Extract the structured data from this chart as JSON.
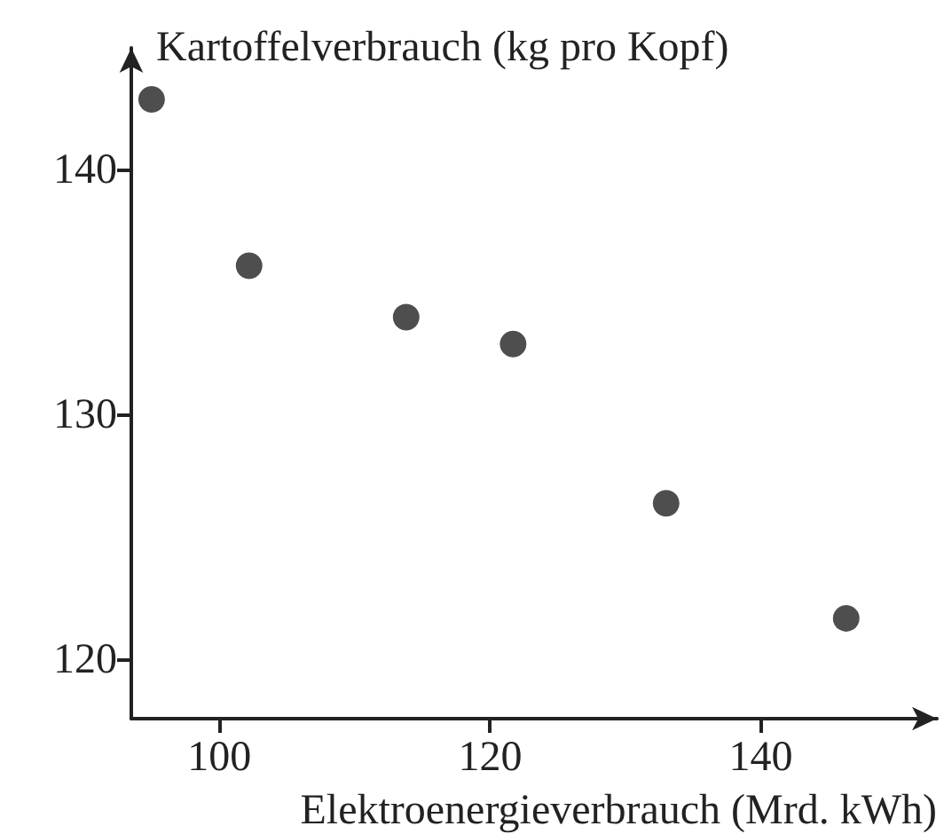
{
  "chart_data": {
    "type": "scatter",
    "xlabel": "Elektroenergieverbrauch (Mrd. kWh)",
    "ylabel": "Kartoffelverbrauch (kg pro Kopf)",
    "x": [
      95.0,
      102.2,
      113.8,
      121.7,
      133.0,
      146.3
    ],
    "series": [
      {
        "color": "#222222",
        "values": [
          142.9,
          136.1,
          134.0,
          132.9,
          126.4,
          121.7
        ]
      }
    ],
    "xlim": [
      93.5,
      153
    ],
    "xticks": [
      100,
      120,
      140
    ],
    "ylim": [
      117.6,
      145
    ],
    "yticks": [
      120,
      130,
      140
    ],
    "marker": "circle"
  }
}
